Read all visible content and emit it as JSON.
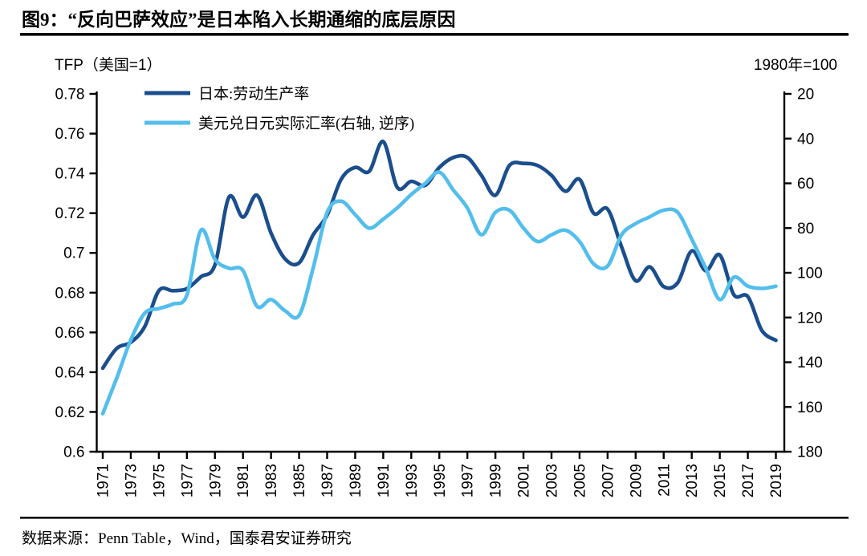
{
  "header": {
    "title": "图9：“反向巴萨效应”是日本陷入长期通缩的底层原因"
  },
  "footer": {
    "source": "数据来源：Penn Table，Wind，国泰君安证券研究"
  },
  "colors": {
    "dark_blue": "#1B4E8C",
    "light_blue": "#53BEEC",
    "axis_black": "#000000",
    "background": "#FFFFFF"
  },
  "chart_data": {
    "type": "line",
    "title": "图9：“反向巴萨效应”是日本陷入长期通缩的底层原因",
    "grid": false,
    "legend_position": "top-left",
    "left_axis": {
      "label": "TFP（美国=1）",
      "range": [
        0.6,
        0.78
      ],
      "tick_labels": [
        "0.78",
        "0.76",
        "0.74",
        "0.72",
        "0.7",
        "0.68",
        "0.66",
        "0.64",
        "0.62",
        "0.6"
      ],
      "tick_values": [
        0.78,
        0.76,
        0.74,
        0.72,
        0.7,
        0.68,
        0.66,
        0.64,
        0.62,
        0.6
      ]
    },
    "right_axis": {
      "label": "1980年=100",
      "range": [
        20,
        180
      ],
      "inverted": true,
      "tick_labels": [
        "20",
        "40",
        "60",
        "80",
        "100",
        "120",
        "140",
        "160",
        "180"
      ],
      "tick_values": [
        20,
        40,
        60,
        80,
        100,
        120,
        140,
        160,
        180
      ]
    },
    "x_tick_labels": [
      "1971",
      "1973",
      "1975",
      "1977",
      "1979",
      "1981",
      "1983",
      "1985",
      "1987",
      "1989",
      "1991",
      "1993",
      "1995",
      "1997",
      "1999",
      "2001",
      "2003",
      "2005",
      "2007",
      "2009",
      "2011",
      "2013",
      "2015",
      "2017",
      "2019"
    ],
    "years": [
      1971,
      1972,
      1973,
      1974,
      1975,
      1976,
      1977,
      1978,
      1979,
      1980,
      1981,
      1982,
      1983,
      1984,
      1985,
      1986,
      1987,
      1988,
      1989,
      1990,
      1991,
      1992,
      1993,
      1994,
      1995,
      1996,
      1997,
      1998,
      1999,
      2000,
      2001,
      2002,
      2003,
      2004,
      2005,
      2006,
      2007,
      2008,
      2009,
      2010,
      2011,
      2012,
      2013,
      2014,
      2015,
      2016,
      2017,
      2018,
      2019
    ],
    "series": [
      {
        "name": "日本:劳动生产率",
        "axis": "left",
        "color": "#1B4E8C",
        "values": [
          0.642,
          0.652,
          0.655,
          0.663,
          0.681,
          0.681,
          0.682,
          0.688,
          0.694,
          0.728,
          0.718,
          0.729,
          0.71,
          0.697,
          0.695,
          0.709,
          0.719,
          0.737,
          0.743,
          0.741,
          0.756,
          0.733,
          0.736,
          0.734,
          0.743,
          0.748,
          0.748,
          0.739,
          0.729,
          0.744,
          0.745,
          0.744,
          0.739,
          0.731,
          0.737,
          0.72,
          0.722,
          0.703,
          0.686,
          0.693,
          0.683,
          0.685,
          0.701,
          0.691,
          0.699,
          0.679,
          0.678,
          0.661,
          0.656
        ]
      },
      {
        "name": "美元兑日元实际汇率(右轴, 逆序)",
        "axis": "right",
        "color": "#53BEEC",
        "values": [
          163,
          147,
          130,
          118,
          116,
          114,
          110,
          81,
          94,
          98,
          99,
          115,
          112,
          117,
          119,
          98,
          73,
          68,
          74,
          80,
          76,
          71,
          65,
          60,
          55,
          63,
          71,
          83,
          73,
          72,
          80,
          86,
          83,
          81,
          86,
          96,
          97,
          83,
          78,
          75,
          72,
          73,
          85,
          98,
          112,
          102,
          106,
          107,
          106
        ]
      }
    ]
  }
}
